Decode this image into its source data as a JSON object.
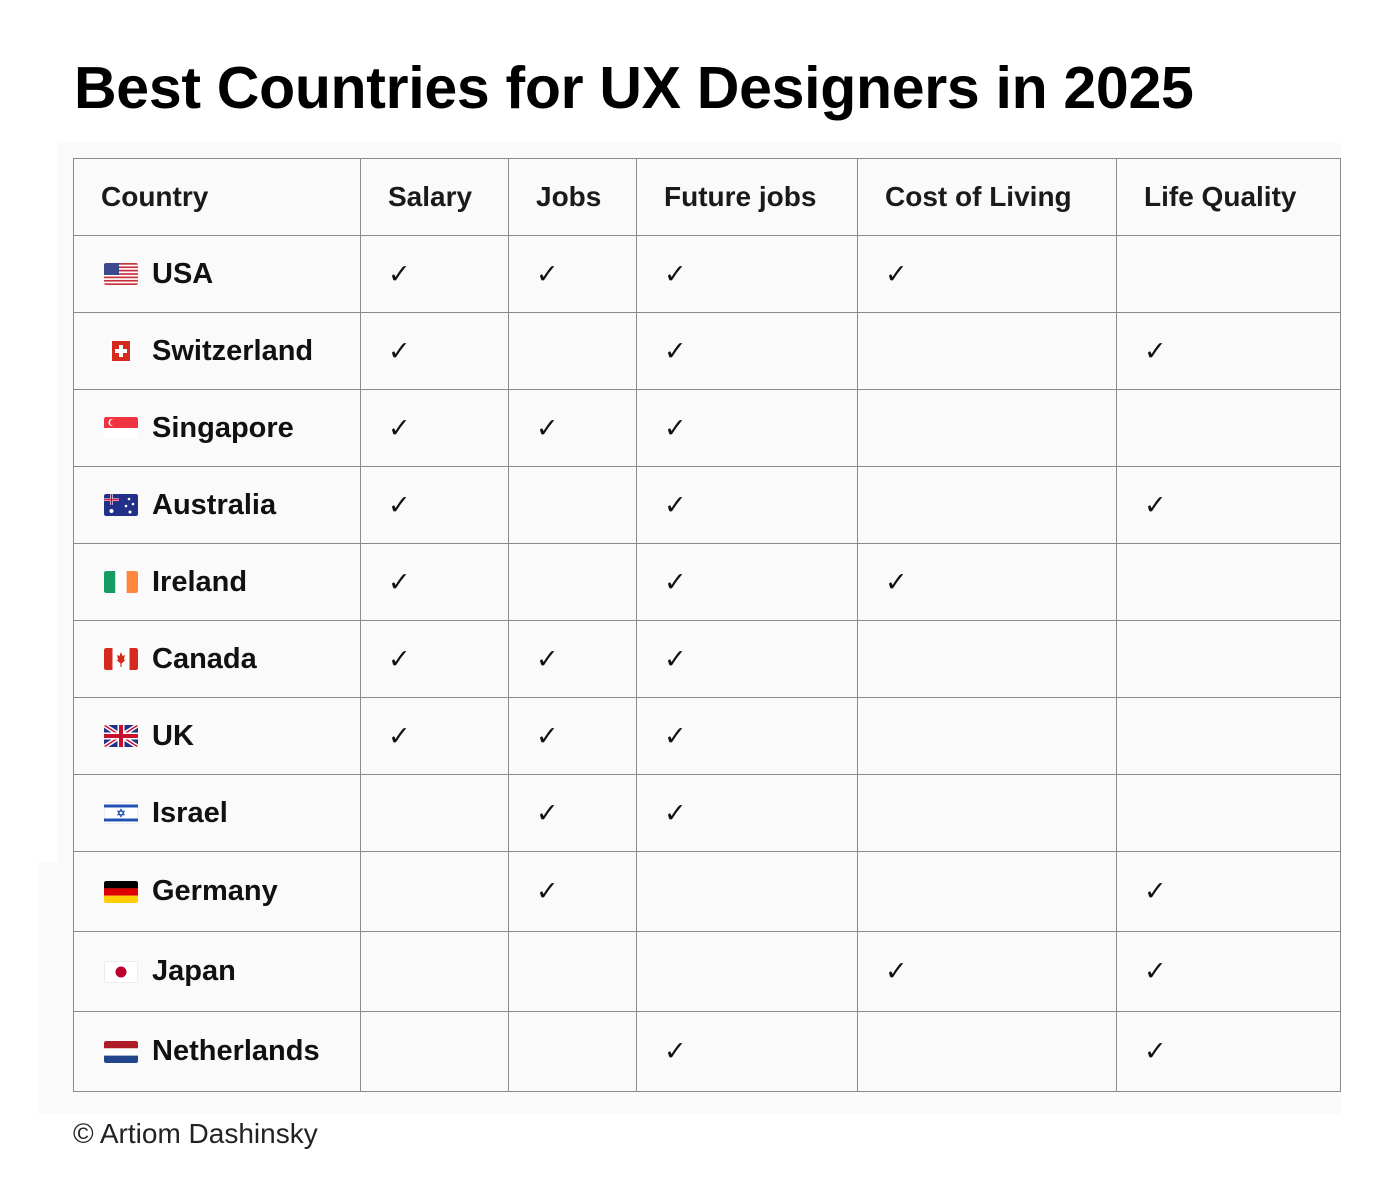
{
  "title": "Best Countries for UX Designers in 2025",
  "columns": [
    "Country",
    "Salary",
    "Jobs",
    "Future jobs",
    "Cost of Living",
    "Life Quality"
  ],
  "check_mark": "✓",
  "rows": [
    {
      "country": "USA",
      "flag": "usa-flag-icon",
      "checks": [
        true,
        true,
        true,
        true,
        false
      ]
    },
    {
      "country": "Switzerland",
      "flag": "switzerland-flag-icon",
      "checks": [
        true,
        false,
        true,
        false,
        true
      ]
    },
    {
      "country": "Singapore",
      "flag": "singapore-flag-icon",
      "checks": [
        true,
        true,
        true,
        false,
        false
      ]
    },
    {
      "country": "Australia",
      "flag": "australia-flag-icon",
      "checks": [
        true,
        false,
        true,
        false,
        true
      ]
    },
    {
      "country": "Ireland",
      "flag": "ireland-flag-icon",
      "checks": [
        true,
        false,
        true,
        true,
        false
      ]
    },
    {
      "country": "Canada",
      "flag": "canada-flag-icon",
      "checks": [
        true,
        true,
        true,
        false,
        false
      ]
    },
    {
      "country": "UK",
      "flag": "uk-flag-icon",
      "checks": [
        true,
        true,
        true,
        false,
        false
      ]
    },
    {
      "country": "Israel",
      "flag": "israel-flag-icon",
      "checks": [
        false,
        true,
        true,
        false,
        false
      ]
    },
    {
      "country": "Germany",
      "flag": "germany-flag-icon",
      "checks": [
        false,
        true,
        false,
        false,
        true
      ]
    },
    {
      "country": "Japan",
      "flag": "japan-flag-icon",
      "checks": [
        false,
        false,
        false,
        true,
        true
      ]
    },
    {
      "country": "Netherlands",
      "flag": "netherlands-flag-icon",
      "checks": [
        false,
        false,
        true,
        false,
        true
      ]
    }
  ],
  "credit": "© Artiom Dashinsky"
}
